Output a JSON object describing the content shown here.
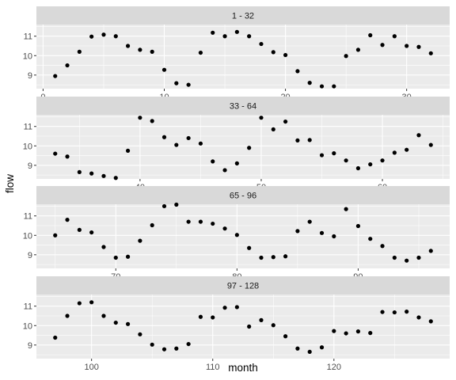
{
  "chart_data": {
    "type": "scatter",
    "xlabel": "month",
    "ylabel": "flow",
    "y_ticks": [
      9,
      10,
      11
    ],
    "ylim": [
      8.3,
      11.6
    ],
    "grid": true,
    "facets": [
      {
        "strip": "1 - 32",
        "xlim": [
          -0.55,
          33.55
        ],
        "x_ticks": [
          0,
          10,
          20,
          30
        ],
        "x": [
          1,
          2,
          3,
          4,
          5,
          6,
          7,
          8,
          9,
          10,
          11,
          12,
          13,
          14,
          15,
          16,
          17,
          18,
          19,
          20,
          21,
          22,
          23,
          24,
          25,
          26,
          27,
          28,
          29,
          30,
          31,
          32
        ],
        "y": [
          8.95,
          9.5,
          10.2,
          10.98,
          11.08,
          11.0,
          10.5,
          10.3,
          10.2,
          9.27,
          8.58,
          8.5,
          10.15,
          11.18,
          11.0,
          11.22,
          11.0,
          10.6,
          10.18,
          10.03,
          9.2,
          8.6,
          8.42,
          8.42,
          9.98,
          10.3,
          11.05,
          10.55,
          11.0,
          10.5,
          10.45,
          10.12
        ]
      },
      {
        "strip": "33 - 64",
        "xlim": [
          31.45,
          65.55
        ],
        "x_ticks": [
          40,
          50,
          60
        ],
        "x": [
          33,
          34,
          35,
          36,
          37,
          38,
          39,
          40,
          41,
          42,
          43,
          44,
          45,
          46,
          47,
          48,
          49,
          50,
          51,
          52,
          53,
          54,
          55,
          56,
          57,
          58,
          59,
          60,
          61,
          62,
          63,
          64
        ],
        "y": [
          9.6,
          9.45,
          8.65,
          8.58,
          8.45,
          8.35,
          9.75,
          11.45,
          11.28,
          10.45,
          10.05,
          10.4,
          10.12,
          9.2,
          8.75,
          9.1,
          9.9,
          11.45,
          10.85,
          11.25,
          10.28,
          10.3,
          9.52,
          9.62,
          9.25,
          8.85,
          9.05,
          9.25,
          9.65,
          9.8,
          10.55,
          10.05
        ]
      },
      {
        "strip": "65 - 96",
        "xlim": [
          63.45,
          97.55
        ],
        "x_ticks": [
          70,
          80,
          90
        ],
        "x": [
          65,
          66,
          67,
          68,
          69,
          70,
          71,
          72,
          73,
          74,
          75,
          76,
          77,
          78,
          79,
          80,
          81,
          82,
          83,
          84,
          85,
          86,
          87,
          88,
          89,
          90,
          91,
          92,
          93,
          94,
          95,
          96
        ],
        "y": [
          10.0,
          10.8,
          10.28,
          10.15,
          9.4,
          8.85,
          8.9,
          9.72,
          10.52,
          11.5,
          11.58,
          10.7,
          10.7,
          10.6,
          10.35,
          10.02,
          9.35,
          8.85,
          8.88,
          8.92,
          10.22,
          10.7,
          10.12,
          9.95,
          11.35,
          10.48,
          9.82,
          9.45,
          8.85,
          8.7,
          8.85,
          9.2
        ]
      },
      {
        "strip": "97 - 128",
        "xlim": [
          95.45,
          129.55
        ],
        "x_ticks": [
          100,
          110,
          120
        ],
        "x": [
          97,
          98,
          99,
          100,
          101,
          102,
          103,
          104,
          105,
          106,
          107,
          108,
          109,
          110,
          111,
          112,
          113,
          114,
          115,
          116,
          117,
          118,
          119,
          120,
          121,
          122,
          123,
          124,
          125,
          126,
          127,
          128
        ],
        "y": [
          9.38,
          10.5,
          11.15,
          11.2,
          10.5,
          10.15,
          10.08,
          9.55,
          9.02,
          8.78,
          8.82,
          9.05,
          10.45,
          10.42,
          10.92,
          10.95,
          9.95,
          10.28,
          10.02,
          9.45,
          8.82,
          8.65,
          8.88,
          9.72,
          9.6,
          9.7,
          9.62,
          10.7,
          10.68,
          10.72,
          10.42,
          10.22
        ]
      }
    ]
  }
}
